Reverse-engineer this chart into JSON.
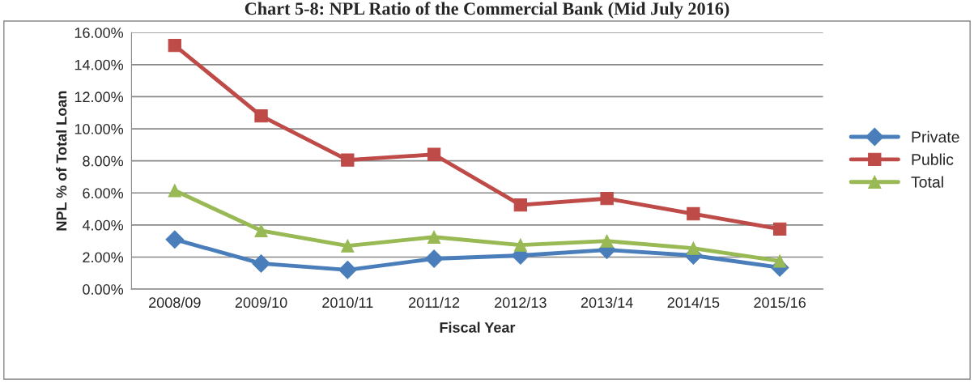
{
  "chart_data": {
    "type": "line",
    "title": "Chart 5-8: NPL Ratio of the Commercial Bank (Mid July 2016)",
    "xlabel": "Fiscal Year",
    "ylabel": "NPL % of Total Loan",
    "categories": [
      "2008/09",
      "2009/10",
      "2010/11",
      "2011/12",
      "2012/13",
      "2013/14",
      "2014/15",
      "2015/16"
    ],
    "series": [
      {
        "name": "Private",
        "color": "#4a7ebb",
        "marker": "diamond",
        "values": [
          3.1,
          1.6,
          1.2,
          1.9,
          2.1,
          2.45,
          2.1,
          1.35
        ]
      },
      {
        "name": "Public",
        "color": "#be4b48",
        "marker": "square",
        "values": [
          15.2,
          10.8,
          8.05,
          8.4,
          5.25,
          5.65,
          4.7,
          3.75
        ]
      },
      {
        "name": "Total",
        "color": "#98b954",
        "marker": "triangle",
        "values": [
          6.15,
          3.65,
          2.7,
          3.25,
          2.75,
          3.0,
          2.55,
          1.75
        ]
      }
    ],
    "ylim": [
      0,
      16
    ],
    "yticks": [
      {
        "value": 0,
        "label": "0.00%"
      },
      {
        "value": 2,
        "label": "2.00%"
      },
      {
        "value": 4,
        "label": "4.00%"
      },
      {
        "value": 6,
        "label": "6.00%"
      },
      {
        "value": 8,
        "label": "8.00%"
      },
      {
        "value": 10,
        "label": "10.00%"
      },
      {
        "value": 12,
        "label": "12.00%"
      },
      {
        "value": 14,
        "label": "14.00%"
      },
      {
        "value": 16,
        "label": "16.00%"
      }
    ],
    "grid": "y",
    "legend": "right"
  }
}
